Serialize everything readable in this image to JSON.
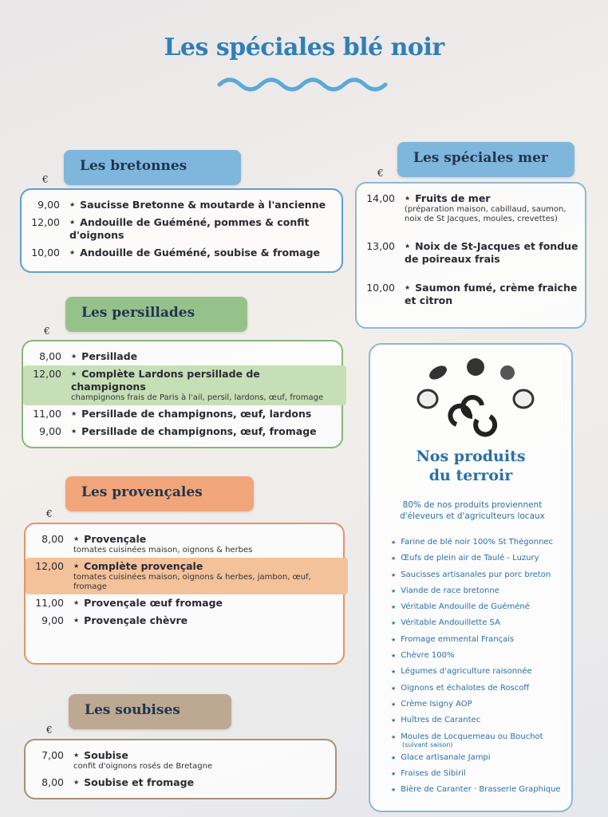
{
  "title": "Les spéciales blé noir",
  "sections": [
    {
      "title": "Les bretonnes",
      "currency": "€",
      "items": [
        {
          "price": "9,00",
          "name": "Saucisse Bretonne & moutarde à l'ancienne"
        },
        {
          "price": "12,00",
          "name": "Andouille de Guéméné, pommes & confit d'oignons"
        },
        {
          "price": "10,00",
          "name": "Andouille de Guéméné, soubise & fromage"
        }
      ]
    },
    {
      "title": "Les persillades",
      "currency": "€",
      "items": [
        {
          "price": "8,00",
          "name": "Persillade"
        },
        {
          "price": "12,00",
          "name": "Complète Lardons persillade de champignons",
          "description": "champignons frais de Paris à l'ail, persil, lardons, œuf, fromage",
          "highlighted": true
        },
        {
          "price": "11,00",
          "name": "Persillade de champignons, œuf, lardons"
        },
        {
          "price": "9,00",
          "name": "Persillade de champignons, œuf, fromage"
        }
      ]
    },
    {
      "title": "Les provençales",
      "currency": "€",
      "items": [
        {
          "price": "8,00",
          "name": "Provençale",
          "description": "tomates cuisinées maison, oignons & herbes"
        },
        {
          "price": "12,00",
          "name": "Complète provençale",
          "description": "tomates cuisinées maison, oignons & herbes, jambon, œuf, fromage",
          "highlighted": true
        },
        {
          "price": "11,00",
          "name": "Provençale œuf fromage"
        },
        {
          "price": "9,00",
          "name": "Provençale chèvre"
        }
      ]
    },
    {
      "title": "Les soubises",
      "currency": "€",
      "items": [
        {
          "price": "7,00",
          "name": "Soubise",
          "description": "confit d'oignons rosés de Bretagne"
        },
        {
          "price": "8,00",
          "name": "Soubise et fromage"
        }
      ]
    },
    {
      "title": "Les spéciales mer",
      "currency": "€",
      "items": [
        {
          "price": "14,00",
          "name": "Fruits de mer",
          "description": "(préparation maison, cabillaud, saumon, noix de St Jacques, moules, crevettes)"
        },
        {
          "price": "13,00",
          "name": "Noix de St-Jacques et fondue de poireaux frais"
        },
        {
          "price": "10,00",
          "name": "Saumon fumé, crème fraiche et citron"
        }
      ]
    }
  ],
  "terroir": {
    "title": "Nos produits du terroir",
    "intro": "80% de nos produits proviennent d'éleveurs et d'agriculteurs locaux",
    "items": [
      {
        "text": "Farine de blé noir 100% St Thégonnec"
      },
      {
        "text": "Œufs de plein air de Taulé - Luzury"
      },
      {
        "text": "Saucisses artisanales pur porc breton"
      },
      {
        "text": "Viande de race bretonne"
      },
      {
        "text": "Véritable Andouille de Guéméné"
      },
      {
        "text": "Véritable Andouillette SA"
      },
      {
        "text": "Fromage emmental Français"
      },
      {
        "text": "Chèvre 100%"
      },
      {
        "text": "Légumes d'agriculture raisonnée"
      },
      {
        "text": "Oignons et échalotes de Roscoff"
      },
      {
        "text": "Crème Isigny AOP"
      },
      {
        "text": "Huîtres de Carantec"
      },
      {
        "text": "Moules de Locquemeau ou Bouchot",
        "note": "(suivant saison)"
      },
      {
        "text": "Glace artisanale Jampi"
      },
      {
        "text": "Fraises de Sibiril"
      },
      {
        "text": "Bière de Caranter · Brasserie Graphique"
      }
    ]
  }
}
